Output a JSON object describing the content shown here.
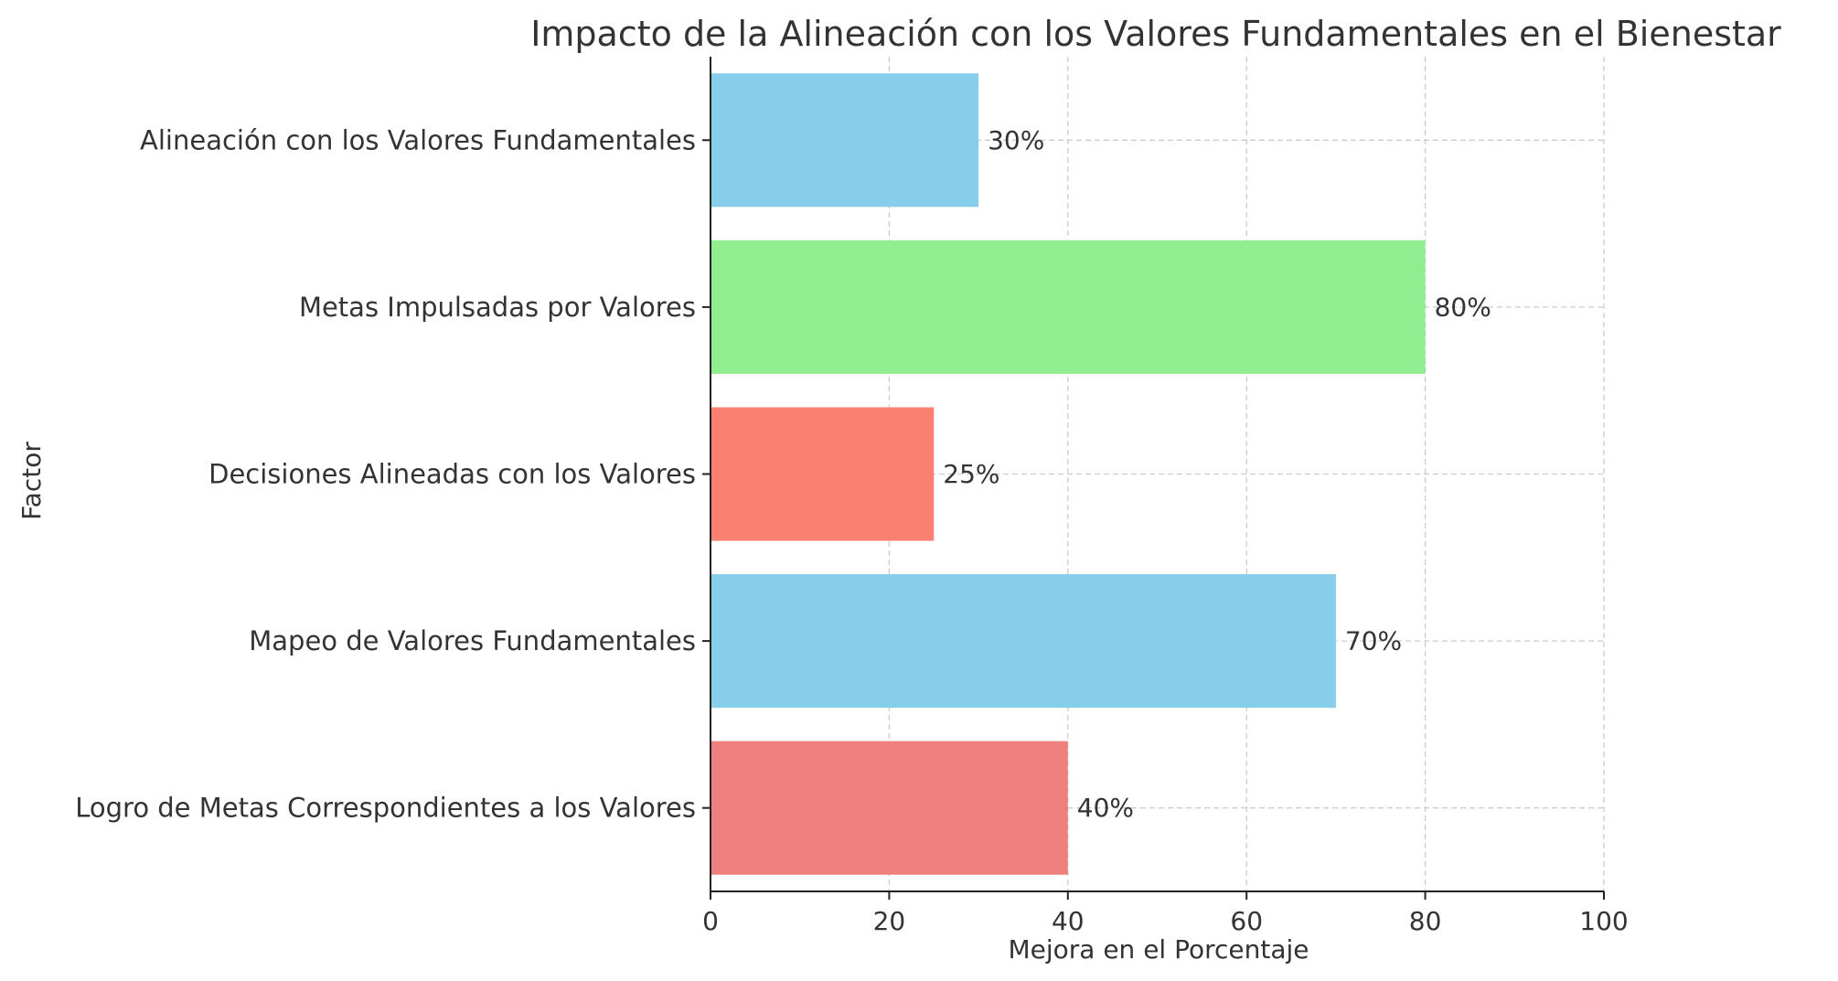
{
  "chart_data": {
    "type": "bar",
    "orientation": "horizontal",
    "title": "Impacto de la Alineación con los Valores Fundamentales en el Bienestar",
    "xlabel": "Mejora en el Porcentaje",
    "ylabel": "Factor",
    "xlim": [
      0,
      100
    ],
    "xticks": [
      0,
      20,
      40,
      60,
      80,
      100
    ],
    "grid": true,
    "categories": [
      "Alineación con los Valores Fundamentales",
      "Metas Impulsadas por Valores",
      "Decisiones Alineadas con los Valores",
      "Mapeo de Valores Fundamentales",
      "Logro de Metas Correspondientes a los Valores"
    ],
    "values": [
      30,
      80,
      25,
      70,
      40
    ],
    "value_labels": [
      "30%",
      "80%",
      "25%",
      "70%",
      "40%"
    ],
    "colors": [
      "#87CEEB",
      "#90EE90",
      "#FA8072",
      "#87CEEB",
      "#F08080"
    ]
  }
}
